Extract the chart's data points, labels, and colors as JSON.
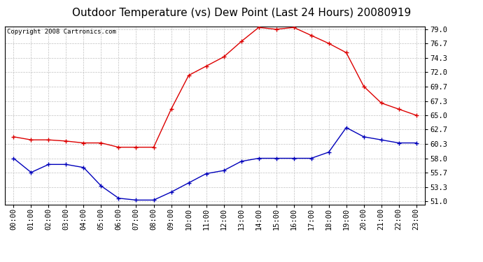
{
  "title": "Outdoor Temperature (vs) Dew Point (Last 24 Hours) 20080919",
  "copyright": "Copyright 2008 Cartronics.com",
  "hours": [
    "00:00",
    "01:00",
    "02:00",
    "03:00",
    "04:00",
    "05:00",
    "06:00",
    "07:00",
    "08:00",
    "09:00",
    "10:00",
    "11:00",
    "12:00",
    "13:00",
    "14:00",
    "15:00",
    "16:00",
    "17:00",
    "18:00",
    "19:00",
    "20:00",
    "21:00",
    "22:00",
    "23:00"
  ],
  "temp": [
    61.5,
    61.0,
    61.0,
    60.8,
    60.5,
    60.5,
    59.8,
    59.8,
    59.8,
    66.0,
    71.5,
    73.0,
    74.5,
    77.0,
    79.3,
    79.0,
    79.3,
    78.0,
    76.7,
    75.2,
    69.7,
    67.0,
    66.0,
    65.0
  ],
  "dewpoint": [
    58.0,
    55.7,
    57.0,
    57.0,
    56.5,
    53.5,
    51.5,
    51.2,
    51.2,
    52.5,
    54.0,
    55.5,
    56.0,
    57.5,
    58.0,
    58.0,
    58.0,
    58.0,
    59.0,
    63.0,
    61.5,
    61.0,
    60.5,
    60.5
  ],
  "temp_color": "#dd0000",
  "dew_color": "#0000bb",
  "grid_color": "#c0c0c0",
  "bg_color": "#ffffff",
  "ytick_labels": [
    "51.0",
    "53.3",
    "55.7",
    "58.0",
    "60.3",
    "62.7",
    "65.0",
    "67.3",
    "69.7",
    "72.0",
    "74.3",
    "76.7",
    "79.0"
  ],
  "ytick_vals": [
    51.0,
    53.3,
    55.7,
    58.0,
    60.3,
    62.7,
    65.0,
    67.3,
    69.7,
    72.0,
    74.3,
    76.7,
    79.0
  ],
  "ymin": 50.5,
  "ymax": 79.5,
  "title_fontsize": 11,
  "copyright_fontsize": 6.5,
  "tick_fontsize": 7.5,
  "line_width": 1.0,
  "marker_size": 4
}
